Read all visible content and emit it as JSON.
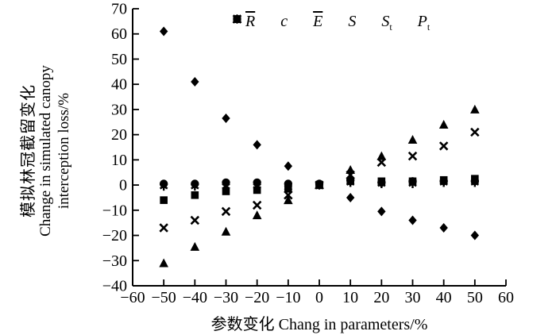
{
  "figure": {
    "background": "#ffffff",
    "ink_color": "#000000"
  },
  "axis_labels": {
    "y_cn": "模拟林冠截留变化",
    "y_en_line1": "Change in simulated canopy",
    "y_en_line2": "interception loss/%",
    "x": "参数变化 Chang in parameters/%"
  },
  "chart_data": {
    "type": "scatter",
    "title": "",
    "xlabel": "参数变化 Chang in parameters/%",
    "ylabel": "模拟林冠截留变化 Change in simulated canopy interception loss/%",
    "xlim": [
      -60,
      60
    ],
    "ylim": [
      -40,
      70
    ],
    "x_ticks": [
      -60,
      -50,
      -40,
      -30,
      -20,
      -10,
      0,
      10,
      20,
      30,
      40,
      50,
      60
    ],
    "y_ticks": [
      -40,
      -30,
      -20,
      -10,
      0,
      10,
      20,
      30,
      40,
      50,
      60,
      70
    ],
    "grid": false,
    "legend_position": "top-inside",
    "x": [
      -50,
      -40,
      -30,
      -20,
      -10,
      0,
      10,
      20,
      30,
      40,
      50
    ],
    "series": [
      {
        "name": "R̄",
        "marker": "diamond",
        "values": [
          61,
          41,
          26.5,
          16,
          7.5,
          0,
          -5,
          -10.5,
          -14,
          -17,
          -20
        ]
      },
      {
        "name": "c",
        "marker": "square",
        "values": [
          -6,
          -4,
          -2.5,
          -2,
          -1.5,
          0,
          1.5,
          1.5,
          1.5,
          2,
          2.5
        ]
      },
      {
        "name": "Ē",
        "marker": "triangle",
        "values": [
          -31,
          -24.5,
          -18.5,
          -12,
          -6,
          0,
          6,
          11.5,
          18,
          24,
          30
        ]
      },
      {
        "name": "S",
        "marker": "x",
        "values": [
          -17,
          -14,
          -10.5,
          -8,
          -4,
          0,
          4,
          9,
          11.5,
          15.5,
          21
        ]
      },
      {
        "name": "St",
        "marker": "asterisk",
        "values": [
          -0.5,
          -0.5,
          -0.5,
          -0.5,
          -1,
          0,
          1,
          0.5,
          0.5,
          1,
          1
        ]
      },
      {
        "name": "Pt",
        "marker": "circle",
        "values": [
          0.5,
          0.5,
          1,
          1,
          0.5,
          0.5,
          2,
          1,
          1.5,
          1.5,
          1.5
        ]
      }
    ]
  },
  "legend": {
    "items": [
      {
        "marker": "diamond",
        "base": "R",
        "overbar": true,
        "sub": ""
      },
      {
        "marker": "square",
        "base": "c",
        "overbar": false,
        "sub": ""
      },
      {
        "marker": "triangle",
        "base": "E",
        "overbar": true,
        "sub": ""
      },
      {
        "marker": "x",
        "base": "S",
        "overbar": false,
        "sub": ""
      },
      {
        "marker": "asterisk",
        "base": "S",
        "overbar": false,
        "sub": "t"
      },
      {
        "marker": "circle",
        "base": "P",
        "overbar": false,
        "sub": "t"
      }
    ]
  }
}
